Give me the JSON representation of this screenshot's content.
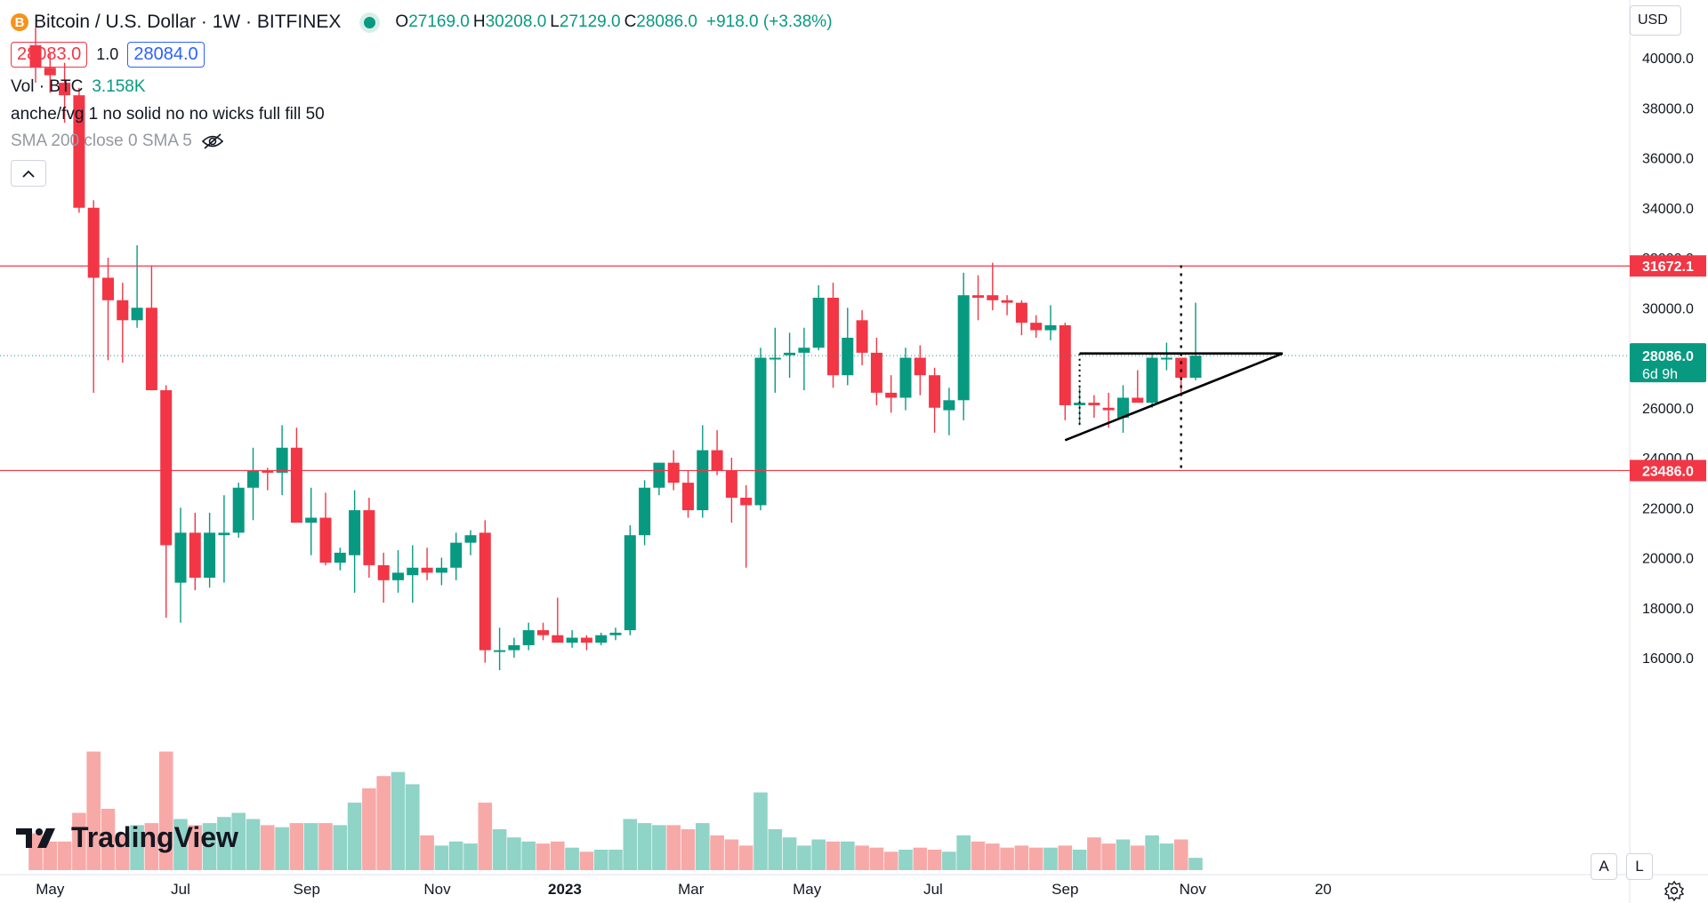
{
  "header": {
    "coin_glyph": "B",
    "symbol_title": "Bitcoin / U.S. Dollar · 1W · BITFINEX",
    "ohlc": [
      {
        "k": "O",
        "v": "27169.0"
      },
      {
        "k": "H",
        "v": "30208.0"
      },
      {
        "k": "L",
        "v": "27129.0"
      },
      {
        "k": "C",
        "v": "28086.0"
      }
    ],
    "change": "+918.0 (+3.38%)",
    "bid": "28083.0",
    "spread": "1.0",
    "ask": "28084.0"
  },
  "indicators": {
    "volume": {
      "label": "Vol · BTC",
      "value": "3.158K"
    },
    "fvg": {
      "label": "anche/fvg 1 no solid no no wicks full fill 50"
    },
    "sma": {
      "label": "SMA 200 close 0 SMA 5"
    }
  },
  "toolbar": {
    "currency": "USD",
    "auto_label": "A",
    "log_label": "L"
  },
  "branding": {
    "logo_text": "TradingView"
  },
  "colors": {
    "up": "#089981",
    "down": "#f23645",
    "vol_up": "#90d3c7",
    "vol_down": "#f7a9a7",
    "level": "#f23645",
    "price_dotted": "#089981"
  },
  "chart_data": {
    "type": "candlestick",
    "instrument": "Bitcoin / U.S. Dollar",
    "interval": "1W",
    "exchange": "BITFINEX",
    "ylim": [
      14600,
      41200
    ],
    "y_ticks": [
      "16000.0",
      "18000.0",
      "20000.0",
      "22000.0",
      "24000.0",
      "26000.0",
      "28000.0",
      "30000.0",
      "32000.0",
      "34000.0",
      "36000.0",
      "38000.0",
      "40000.0"
    ],
    "x_ticks": [
      "May",
      "Jul",
      "Sep",
      "Nov",
      "2023",
      "Mar",
      "May",
      "Jul",
      "Sep",
      "Nov",
      "20"
    ],
    "price_label": {
      "value": "28086.0",
      "countdown": "6d 9h"
    },
    "horizontal_levels": [
      {
        "value": 31672.1,
        "label": "31672.1"
      },
      {
        "value": 23486.0,
        "label": "23486.0"
      }
    ],
    "candles": [
      [
        40500,
        41200,
        39000,
        39600,
        0.18
      ],
      [
        39600,
        40200,
        38600,
        39300,
        0.14
      ],
      [
        39000,
        39800,
        37400,
        38500,
        0.14
      ],
      [
        38500,
        38800,
        33800,
        34000,
        0.28
      ],
      [
        34000,
        34300,
        26600,
        31200,
        0.58
      ],
      [
        31200,
        32000,
        27900,
        30300,
        0.3
      ],
      [
        30300,
        31000,
        27800,
        29500,
        0.18
      ],
      [
        29500,
        32500,
        29200,
        30000,
        0.22
      ],
      [
        30000,
        31700,
        26700,
        26700,
        0.23
      ],
      [
        26700,
        26900,
        17600,
        20500,
        0.58
      ],
      [
        19000,
        22000,
        17400,
        21000,
        0.25
      ],
      [
        21000,
        21800,
        18700,
        19200,
        0.22
      ],
      [
        19200,
        21800,
        18800,
        21000,
        0.23
      ],
      [
        20900,
        22500,
        19000,
        21000,
        0.26
      ],
      [
        21000,
        23000,
        20800,
        22800,
        0.28
      ],
      [
        22800,
        24400,
        21500,
        23500,
        0.25
      ],
      [
        23500,
        23600,
        22700,
        23400,
        0.22
      ],
      [
        23400,
        25300,
        22500,
        24400,
        0.21
      ],
      [
        24400,
        25200,
        21600,
        21400,
        0.23
      ],
      [
        21400,
        22800,
        20100,
        21600,
        0.23
      ],
      [
        21600,
        22600,
        19700,
        19800,
        0.23
      ],
      [
        19800,
        20400,
        19500,
        20200,
        0.22
      ],
      [
        20100,
        22700,
        18600,
        21900,
        0.33
      ],
      [
        21900,
        22400,
        19200,
        19700,
        0.4
      ],
      [
        19700,
        20200,
        18200,
        19100,
        0.46
      ],
      [
        19100,
        20300,
        18600,
        19400,
        0.48
      ],
      [
        19300,
        20500,
        18200,
        19600,
        0.42
      ],
      [
        19600,
        20400,
        19100,
        19400,
        0.17
      ],
      [
        19400,
        20000,
        18900,
        19600,
        0.12
      ],
      [
        19600,
        21000,
        19100,
        20600,
        0.14
      ],
      [
        20600,
        21100,
        20100,
        20900,
        0.13
      ],
      [
        21000,
        21500,
        15800,
        16300,
        0.33
      ],
      [
        16300,
        17200,
        15500,
        16300,
        0.2
      ],
      [
        16300,
        16800,
        16000,
        16500,
        0.16
      ],
      [
        16500,
        17400,
        16300,
        17100,
        0.14
      ],
      [
        17100,
        17400,
        16700,
        16900,
        0.13
      ],
      [
        16900,
        18400,
        16600,
        16600,
        0.14
      ],
      [
        16600,
        17100,
        16400,
        16800,
        0.11
      ],
      [
        16800,
        16900,
        16300,
        16600,
        0.09
      ],
      [
        16600,
        17000,
        16500,
        16900,
        0.1
      ],
      [
        16900,
        17200,
        16700,
        17000,
        0.1
      ],
      [
        17100,
        21300,
        16900,
        20900,
        0.25
      ],
      [
        20900,
        23100,
        20500,
        22800,
        0.23
      ],
      [
        22800,
        23800,
        22500,
        23800,
        0.22
      ],
      [
        23800,
        24300,
        22700,
        23000,
        0.22
      ],
      [
        23000,
        23500,
        21600,
        21900,
        0.2
      ],
      [
        21900,
        25300,
        21600,
        24300,
        0.23
      ],
      [
        24300,
        25100,
        23300,
        23500,
        0.17
      ],
      [
        23500,
        24000,
        21400,
        22400,
        0.15
      ],
      [
        22400,
        22900,
        19600,
        22100,
        0.12
      ],
      [
        22100,
        28400,
        21900,
        28000,
        0.38
      ],
      [
        28000,
        29200,
        26600,
        28000,
        0.2
      ],
      [
        28100,
        29000,
        27200,
        28200,
        0.16
      ],
      [
        28200,
        29200,
        26700,
        28400,
        0.12
      ],
      [
        28400,
        30900,
        28300,
        30400,
        0.15
      ],
      [
        30400,
        31000,
        26800,
        27300,
        0.14
      ],
      [
        27300,
        30000,
        26900,
        28800,
        0.14
      ],
      [
        29500,
        29900,
        27700,
        28200,
        0.12
      ],
      [
        28200,
        28800,
        26100,
        26600,
        0.11
      ],
      [
        26600,
        27300,
        25800,
        26400,
        0.09
      ],
      [
        26400,
        28400,
        25900,
        28000,
        0.1
      ],
      [
        28000,
        28500,
        26500,
        27300,
        0.11
      ],
      [
        27300,
        27600,
        25000,
        26000,
        0.1
      ],
      [
        25900,
        26800,
        24900,
        26300,
        0.09
      ],
      [
        26300,
        31400,
        25500,
        30500,
        0.17
      ],
      [
        30500,
        31300,
        29500,
        30400,
        0.14
      ],
      [
        30500,
        31800,
        29900,
        30300,
        0.13
      ],
      [
        30300,
        30500,
        29700,
        30200,
        0.11
      ],
      [
        30200,
        30300,
        28900,
        29400,
        0.12
      ],
      [
        29400,
        29700,
        28800,
        29100,
        0.11
      ],
      [
        29100,
        30100,
        28700,
        29300,
        0.11
      ],
      [
        29300,
        29400,
        25500,
        26100,
        0.12
      ],
      [
        26100,
        26800,
        25300,
        26200,
        0.1
      ],
      [
        26200,
        26500,
        25600,
        26100,
        0.16
      ],
      [
        26000,
        26600,
        25200,
        25900,
        0.13
      ],
      [
        25600,
        26900,
        25000,
        26400,
        0.15
      ],
      [
        26400,
        27500,
        26300,
        26200,
        0.12
      ],
      [
        26200,
        28200,
        26000,
        28000,
        0.17
      ],
      [
        28000,
        28600,
        27500,
        28000,
        0.13
      ],
      [
        28000,
        28000,
        26600,
        27200,
        0.15
      ],
      [
        27200,
        30200,
        27100,
        28086,
        0.06
      ]
    ],
    "pattern": {
      "type": "ascending-triangle",
      "resistance": {
        "from_index": 72,
        "to_index": 86,
        "price": 28170
      },
      "support": {
        "from_index": 71,
        "from_price": 24700,
        "to_index": 86,
        "to_price": 28170
      },
      "projection_index": 79,
      "projection_range": [
        23500,
        31700
      ]
    }
  }
}
